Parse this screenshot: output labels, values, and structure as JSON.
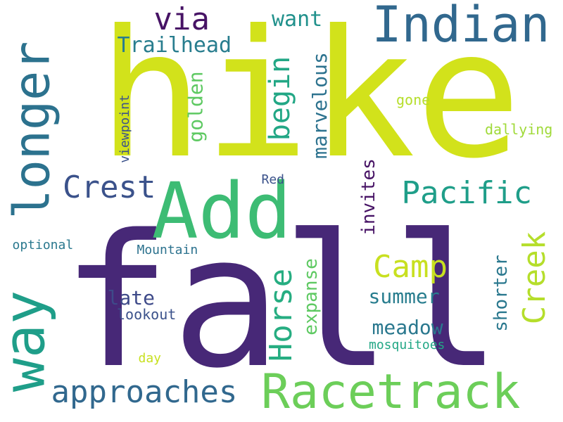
{
  "words": [
    {
      "id": "hike",
      "text": "hike",
      "color": "#d2e21b",
      "orientation": "horizontal"
    },
    {
      "id": "fall",
      "text": "fall",
      "color": "#472877",
      "orientation": "horizontal"
    },
    {
      "id": "indian",
      "text": "Indian",
      "color": "#31688e",
      "orientation": "horizontal"
    },
    {
      "id": "add",
      "text": "Add",
      "color": "#3dbc74",
      "orientation": "horizontal"
    },
    {
      "id": "racetrack",
      "text": "Racetrack",
      "color": "#6cce59",
      "orientation": "horizontal"
    },
    {
      "id": "longer",
      "text": "longer",
      "color": "#2c728e",
      "orientation": "vertical"
    },
    {
      "id": "way",
      "text": "way",
      "color": "#1f9e89",
      "orientation": "vertical"
    },
    {
      "id": "approaches",
      "text": "approaches",
      "color": "#31688e",
      "orientation": "horizontal"
    },
    {
      "id": "crest",
      "text": "Crest",
      "color": "#3b528b",
      "orientation": "horizontal"
    },
    {
      "id": "pacific",
      "text": "Pacific",
      "color": "#1f9e89",
      "orientation": "horizontal"
    },
    {
      "id": "camp",
      "text": "Camp",
      "color": "#c8e020",
      "orientation": "horizontal"
    },
    {
      "id": "creek",
      "text": "Creek",
      "color": "#b5de2b",
      "orientation": "vertical"
    },
    {
      "id": "horse",
      "text": "Horse",
      "color": "#26ad81",
      "orientation": "vertical"
    },
    {
      "id": "begin",
      "text": "begin",
      "color": "#22a785",
      "orientation": "vertical"
    },
    {
      "id": "via",
      "text": "via",
      "color": "#471365",
      "orientation": "horizontal"
    },
    {
      "id": "trailhead",
      "text": "Trailhead",
      "color": "#287d8e",
      "orientation": "horizontal"
    },
    {
      "id": "want",
      "text": "want",
      "color": "#21918c",
      "orientation": "horizontal"
    },
    {
      "id": "marvelous",
      "text": "marvelous",
      "color": "#2c728e",
      "orientation": "vertical"
    },
    {
      "id": "golden",
      "text": "golden",
      "color": "#5ec962",
      "orientation": "vertical"
    },
    {
      "id": "viewpoint",
      "text": "viewpoint",
      "color": "#3b528b",
      "orientation": "vertical"
    },
    {
      "id": "gone",
      "text": "gone",
      "color": "#b5de2b",
      "orientation": "horizontal"
    },
    {
      "id": "dallying",
      "text": "dallying",
      "color": "#a0da39",
      "orientation": "horizontal"
    },
    {
      "id": "invites",
      "text": "invites",
      "color": "#471365",
      "orientation": "vertical"
    },
    {
      "id": "red",
      "text": "Red",
      "color": "#3b528b",
      "orientation": "horizontal"
    },
    {
      "id": "mountain",
      "text": "Mountain",
      "color": "#2c728e",
      "orientation": "horizontal"
    },
    {
      "id": "optional",
      "text": "optional",
      "color": "#2a788e",
      "orientation": "horizontal"
    },
    {
      "id": "late",
      "text": "late",
      "color": "#3e4a89",
      "orientation": "horizontal"
    },
    {
      "id": "expanse",
      "text": "expanse",
      "color": "#5ec962",
      "orientation": "vertical"
    },
    {
      "id": "summer",
      "text": "summer",
      "color": "#287d8e",
      "orientation": "horizontal"
    },
    {
      "id": "shorter",
      "text": "shorter",
      "color": "#2a788e",
      "orientation": "vertical"
    },
    {
      "id": "lookout",
      "text": "lookout",
      "color": "#3b528b",
      "orientation": "horizontal"
    },
    {
      "id": "meadow",
      "text": "meadow",
      "color": "#2a788e",
      "orientation": "horizontal"
    },
    {
      "id": "mosquitoes",
      "text": "mosquitoes",
      "color": "#22a785",
      "orientation": "horizontal"
    },
    {
      "id": "day",
      "text": "day",
      "color": "#c8e020",
      "orientation": "horizontal"
    }
  ]
}
